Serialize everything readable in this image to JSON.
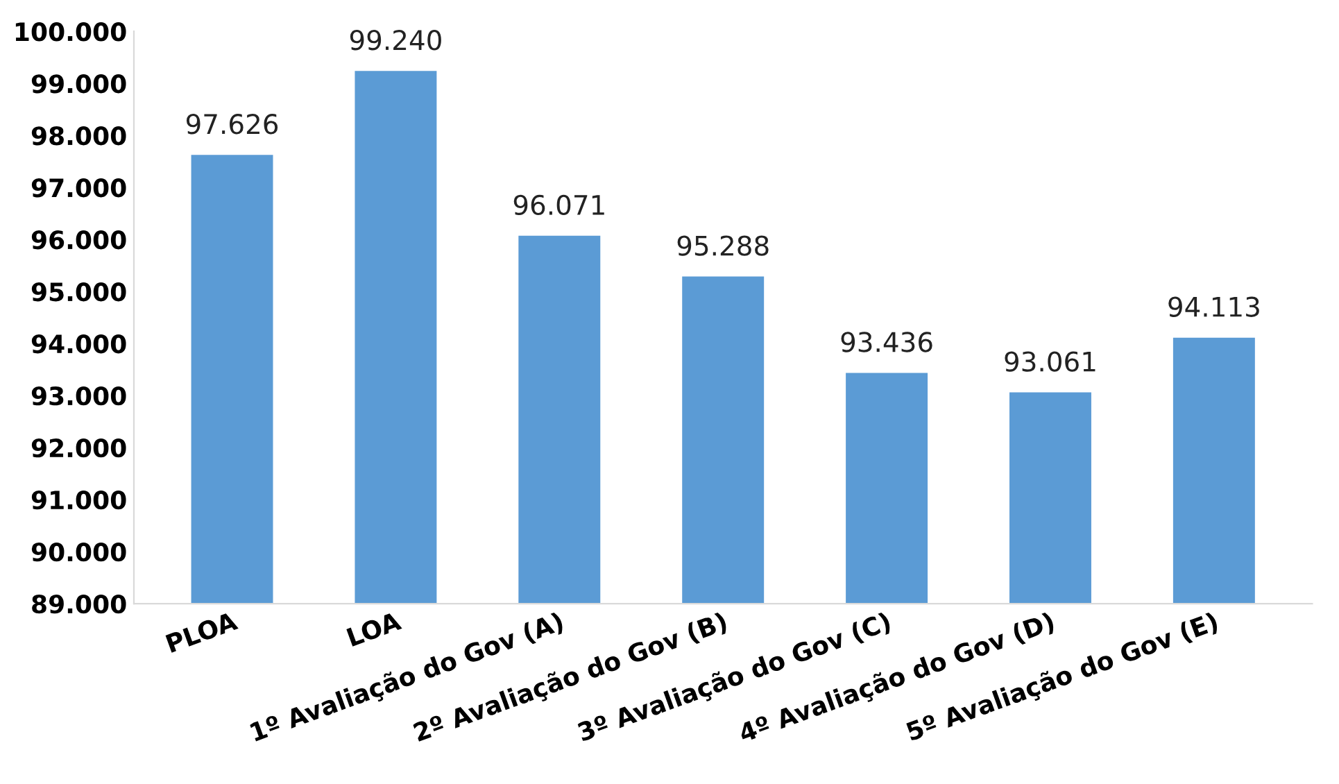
{
  "chart_data": {
    "type": "bar",
    "categories": [
      "PLOA",
      "LOA",
      "1º Avaliação do Gov (A)",
      "2º Avaliação do Gov (B)",
      "3º Avaliação do Gov (C)",
      "4º Avaliação do Gov (D)",
      "5º Avaliação do Gov (E)"
    ],
    "values": [
      97626,
      99240,
      96071,
      95288,
      93436,
      93061,
      94113
    ],
    "value_labels": [
      "97.626",
      "99.240",
      "96.071",
      "95.288",
      "93.436",
      "93.061",
      "94.113"
    ],
    "color": "#5b9bd5",
    "ylim": [
      89000,
      100000
    ],
    "yticks": [
      {
        "value": 89000,
        "label": "89.000"
      },
      {
        "value": 90000,
        "label": "90.000"
      },
      {
        "value": 91000,
        "label": "91.000"
      },
      {
        "value": 92000,
        "label": "92.000"
      },
      {
        "value": 93000,
        "label": "93.000"
      },
      {
        "value": 94000,
        "label": "94.000"
      },
      {
        "value": 95000,
        "label": "95.000"
      },
      {
        "value": 96000,
        "label": "96.000"
      },
      {
        "value": 97000,
        "label": "97.000"
      },
      {
        "value": 98000,
        "label": "98.000"
      },
      {
        "value": 99000,
        "label": "99.000"
      },
      {
        "value": 100000,
        "label": "100.000"
      }
    ],
    "grid": false,
    "legend": false
  }
}
